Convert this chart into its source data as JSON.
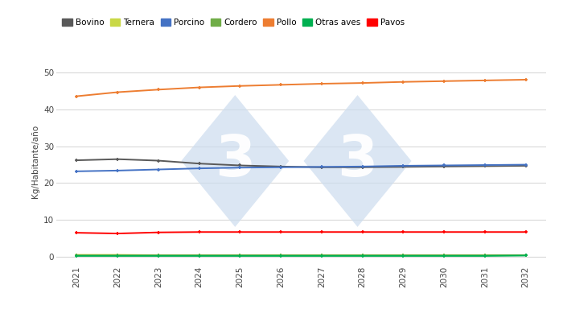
{
  "years": [
    2021,
    2022,
    2023,
    2024,
    2025,
    2026,
    2027,
    2028,
    2029,
    2030,
    2031,
    2032
  ],
  "series": [
    {
      "name": "Bovino",
      "values": [
        26.2,
        26.5,
        26.1,
        25.3,
        24.8,
        24.5,
        24.3,
        24.3,
        24.4,
        24.5,
        24.6,
        24.7
      ],
      "color": "#595959",
      "marker": "+"
    },
    {
      "name": "Ternera",
      "values": [
        0.5,
        0.5,
        0.4,
        0.4,
        0.4,
        0.4,
        0.4,
        0.4,
        0.4,
        0.4,
        0.4,
        0.4
      ],
      "color": "#c9d846",
      "marker": "+"
    },
    {
      "name": "Porcino",
      "values": [
        23.2,
        23.4,
        23.7,
        24.0,
        24.2,
        24.3,
        24.4,
        24.5,
        24.7,
        24.8,
        24.9,
        25.0
      ],
      "color": "#4472c4",
      "marker": "+"
    },
    {
      "name": "Cordero",
      "values": [
        0.4,
        0.4,
        0.4,
        0.4,
        0.4,
        0.4,
        0.4,
        0.4,
        0.4,
        0.4,
        0.4,
        0.4
      ],
      "color": "#70ad47",
      "marker": "+"
    },
    {
      "name": "Pollo",
      "values": [
        43.6,
        44.7,
        45.4,
        46.0,
        46.4,
        46.7,
        47.0,
        47.2,
        47.5,
        47.7,
        47.9,
        48.1
      ],
      "color": "#ed7d31",
      "marker": "+"
    },
    {
      "name": "Otras aves",
      "values": [
        0.2,
        0.2,
        0.2,
        0.2,
        0.2,
        0.2,
        0.2,
        0.2,
        0.2,
        0.2,
        0.2,
        0.3
      ],
      "color": "#00b050",
      "marker": "+"
    },
    {
      "name": "Pavos",
      "values": [
        6.5,
        6.3,
        6.6,
        6.7,
        6.7,
        6.7,
        6.7,
        6.7,
        6.7,
        6.7,
        6.7,
        6.7
      ],
      "color": "#ff0000",
      "marker": "+"
    }
  ],
  "ylabel": "Kg/Habitante/año",
  "ylim": [
    -2,
    54
  ],
  "yticks": [
    0,
    10,
    20,
    30,
    40,
    50
  ],
  "background_color": "#ffffff",
  "grid_color": "#d9d9d9",
  "watermark_color": "#ccdcee",
  "watermark_alpha": 0.7
}
